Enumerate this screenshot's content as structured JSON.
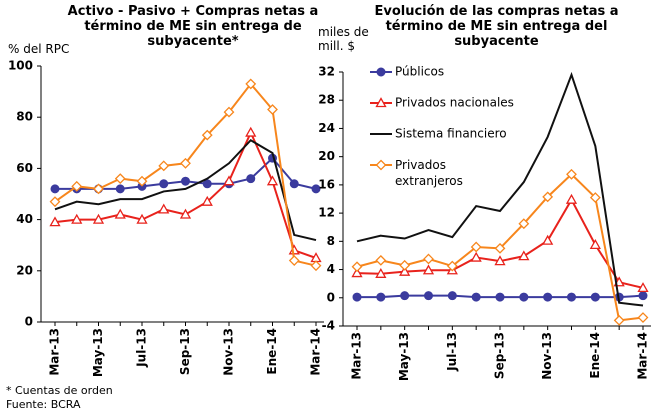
{
  "chart_data": [
    {
      "type": "line",
      "title": "Activo - Pasivo + Compras netas a término de ME sin entrega de subyacente*",
      "y_label": "% del RPC",
      "categories": [
        "Mar-13",
        null,
        "May-13",
        null,
        "Jul-13",
        null,
        "Sep-13",
        null,
        "Nov-13",
        null,
        "Ene-14",
        null,
        "Mar-14"
      ],
      "ylim": [
        0,
        100
      ],
      "yticks": [
        0,
        20,
        40,
        60,
        80,
        100
      ],
      "series": [
        {
          "color": "#3b3b9e",
          "marker": "circle",
          "values": [
            52,
            52,
            52,
            52,
            53,
            54,
            55,
            54,
            54,
            56,
            64,
            54,
            52
          ]
        },
        {
          "color": "#e8221c",
          "marker": "triangle",
          "values": [
            39,
            40,
            40,
            42,
            40,
            44,
            42,
            47,
            55,
            74,
            55,
            28,
            25
          ]
        },
        {
          "color": "#111111",
          "marker": "none",
          "values": [
            44,
            47,
            46,
            48,
            48,
            51,
            52,
            56,
            62,
            71,
            66,
            34,
            32
          ]
        },
        {
          "color": "#f7861c",
          "marker": "diamond",
          "values": [
            47,
            53,
            52,
            56,
            55,
            61,
            62,
            73,
            82,
            93,
            83,
            24,
            22
          ]
        }
      ]
    },
    {
      "type": "line",
      "title": "Evolución de las compras netas a término de ME sin entrega del subyacente",
      "y_label": "miles de mill. $",
      "categories": [
        "Mar-13",
        null,
        "May-13",
        null,
        "Jul-13",
        null,
        "Sep-13",
        null,
        "Nov-13",
        null,
        "Ene-14",
        null,
        "Mar-14"
      ],
      "ylim": [
        -4,
        32
      ],
      "yticks": [
        -4,
        0,
        4,
        8,
        12,
        16,
        20,
        24,
        28,
        32
      ],
      "series": [
        {
          "name": "Públicos",
          "color": "#3b3b9e",
          "marker": "circle",
          "values": [
            0.1,
            0.1,
            0.3,
            0.3,
            0.3,
            0.1,
            0.1,
            0.1,
            0.1,
            0.1,
            0.1,
            0.1,
            0.3
          ]
        },
        {
          "name": "Privados nacionales",
          "color": "#e8221c",
          "marker": "triangle",
          "values": [
            3.5,
            3.4,
            3.7,
            3.9,
            3.9,
            5.7,
            5.2,
            5.9,
            8.1,
            13.9,
            7.5,
            2.2,
            1.4
          ]
        },
        {
          "name": "Sistema financiero",
          "color": "#111111",
          "marker": "none",
          "values": [
            8,
            8.8,
            8.4,
            9.6,
            8.6,
            13,
            12.3,
            16.4,
            22.8,
            31.6,
            21.5,
            -0.7,
            -1.1
          ]
        },
        {
          "name": "Privados extranjeros",
          "color": "#f7861c",
          "marker": "diamond",
          "values": [
            4.4,
            5.3,
            4.6,
            5.5,
            4.5,
            7.2,
            7,
            10.5,
            14.3,
            17.5,
            14.2,
            -3.2,
            -2.8
          ]
        }
      ]
    }
  ],
  "footnotes": [
    "* Cuentas de orden",
    "Fuente: BCRA"
  ]
}
